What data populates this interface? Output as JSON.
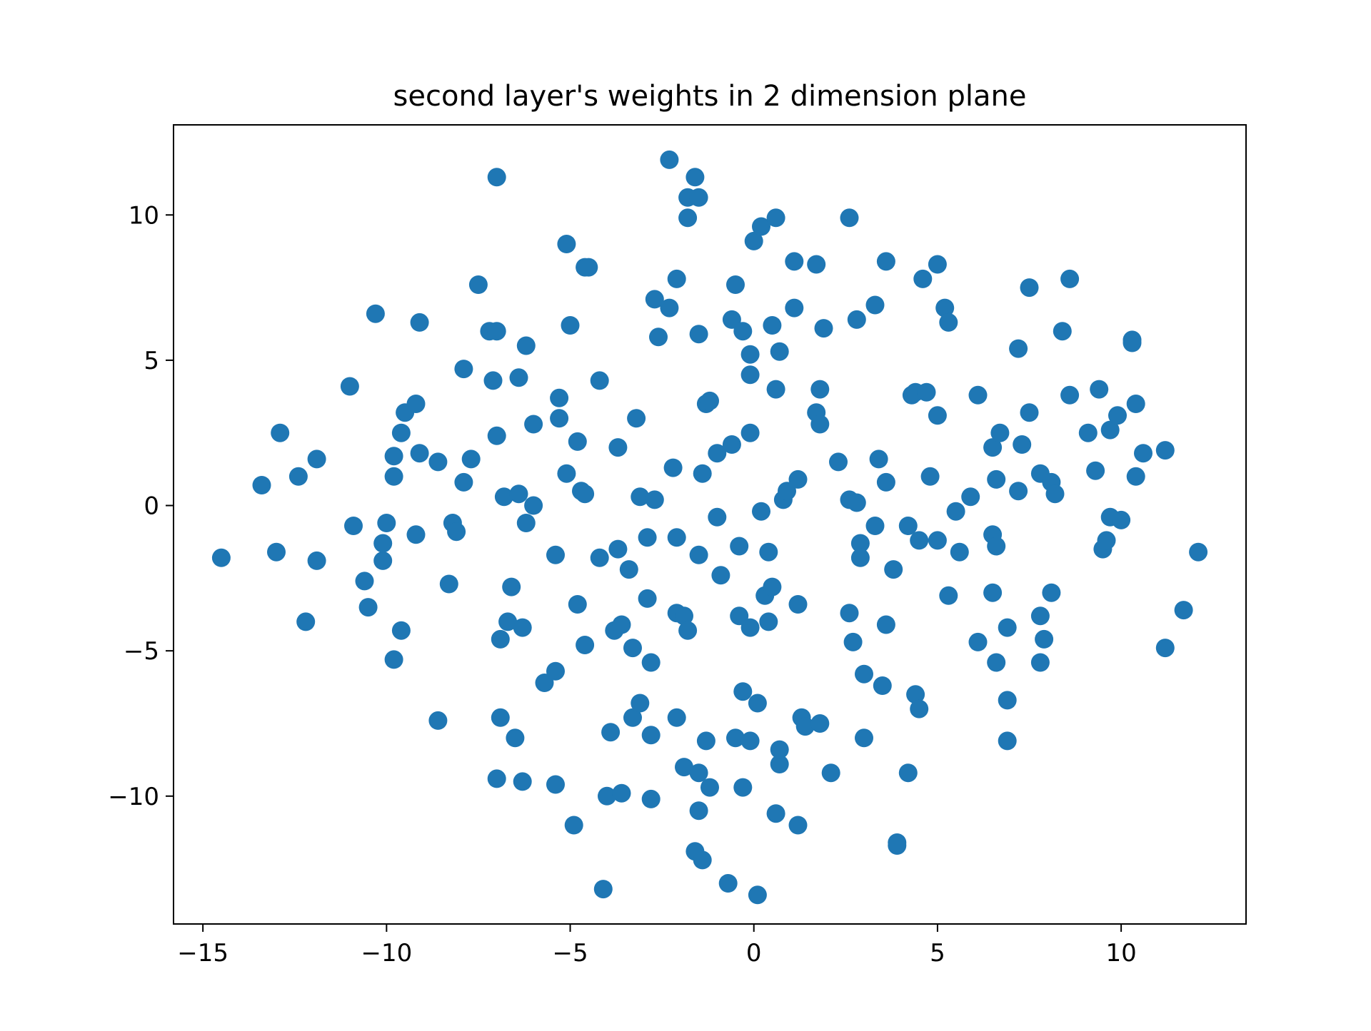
{
  "chart_data": {
    "type": "scatter",
    "title": "second layer's weights in 2 dimension plane",
    "xlabel": "",
    "ylabel": "",
    "xlim": [
      -15.8,
      13.4
    ],
    "ylim": [
      -14.4,
      13.1
    ],
    "xticks": [
      -15,
      -10,
      -5,
      0,
      5,
      10
    ],
    "xtick_labels": [
      "−15",
      "−10",
      "−5",
      "0",
      "5",
      "10"
    ],
    "yticks": [
      -10,
      -5,
      0,
      5,
      10
    ],
    "ytick_labels": [
      "−10",
      "−5",
      "0",
      "5",
      "10"
    ],
    "grid": false,
    "legend": "none",
    "marker_color": "#1f77b4",
    "points": [
      [
        -14.5,
        -1.8
      ],
      [
        -13.4,
        0.7
      ],
      [
        -12.9,
        2.5
      ],
      [
        -13.0,
        -1.6
      ],
      [
        -12.4,
        1.0
      ],
      [
        -12.2,
        -4.0
      ],
      [
        -11.9,
        1.6
      ],
      [
        -11.9,
        -1.9
      ],
      [
        -11.0,
        4.1
      ],
      [
        -10.9,
        -0.7
      ],
      [
        -10.6,
        -2.6
      ],
      [
        -10.5,
        -3.5
      ],
      [
        -10.3,
        6.6
      ],
      [
        -10.1,
        -1.9
      ],
      [
        -10.1,
        -1.3
      ],
      [
        -10.0,
        -0.6
      ],
      [
        -9.8,
        1.0
      ],
      [
        -9.8,
        1.7
      ],
      [
        -9.8,
        -5.3
      ],
      [
        -9.6,
        -4.3
      ],
      [
        -9.6,
        2.5
      ],
      [
        -9.5,
        3.2
      ],
      [
        -9.2,
        3.5
      ],
      [
        -9.2,
        -1.0
      ],
      [
        -9.1,
        1.8
      ],
      [
        -9.1,
        6.3
      ],
      [
        -8.6,
        1.5
      ],
      [
        -8.6,
        -7.4
      ],
      [
        -8.3,
        -2.7
      ],
      [
        -8.2,
        -0.6
      ],
      [
        -8.1,
        -0.9
      ],
      [
        -7.9,
        0.8
      ],
      [
        -7.9,
        4.7
      ],
      [
        -7.7,
        1.6
      ],
      [
        -7.5,
        7.6
      ],
      [
        -7.2,
        6.0
      ],
      [
        -7.1,
        4.3
      ],
      [
        -7.0,
        6.0
      ],
      [
        -7.0,
        2.4
      ],
      [
        -7.0,
        11.3
      ],
      [
        -7.0,
        -9.4
      ],
      [
        -6.9,
        -4.6
      ],
      [
        -6.9,
        -7.3
      ],
      [
        -6.8,
        0.3
      ],
      [
        -6.7,
        -4.0
      ],
      [
        -6.6,
        -2.8
      ],
      [
        -6.5,
        -8.0
      ],
      [
        -6.4,
        0.4
      ],
      [
        -6.4,
        4.4
      ],
      [
        -6.3,
        -4.2
      ],
      [
        -6.3,
        -9.5
      ],
      [
        -6.2,
        -0.6
      ],
      [
        -6.2,
        5.5
      ],
      [
        -6.0,
        2.8
      ],
      [
        -6.0,
        0.0
      ],
      [
        -5.7,
        -6.1
      ],
      [
        -5.4,
        -5.7
      ],
      [
        -5.4,
        -1.7
      ],
      [
        -5.4,
        -9.6
      ],
      [
        -5.3,
        3.0
      ],
      [
        -5.3,
        3.7
      ],
      [
        -5.1,
        9.0
      ],
      [
        -5.1,
        1.1
      ],
      [
        -5.0,
        6.2
      ],
      [
        -4.9,
        -11.0
      ],
      [
        -4.8,
        2.2
      ],
      [
        -4.8,
        -3.4
      ],
      [
        -4.7,
        0.5
      ],
      [
        -4.6,
        -4.8
      ],
      [
        -4.6,
        0.4
      ],
      [
        -4.6,
        8.2
      ],
      [
        -4.5,
        8.2
      ],
      [
        -4.2,
        4.3
      ],
      [
        -4.2,
        -1.8
      ],
      [
        -4.1,
        -13.2
      ],
      [
        -4.0,
        -10.0
      ],
      [
        -3.9,
        -7.8
      ],
      [
        -3.8,
        -4.3
      ],
      [
        -3.7,
        -1.5
      ],
      [
        -3.7,
        2.0
      ],
      [
        -3.6,
        -4.1
      ],
      [
        -3.6,
        -9.9
      ],
      [
        -3.4,
        -2.2
      ],
      [
        -3.3,
        -7.3
      ],
      [
        -3.3,
        -4.9
      ],
      [
        -3.2,
        3.0
      ],
      [
        -3.1,
        -6.8
      ],
      [
        -3.1,
        0.3
      ],
      [
        -2.9,
        -1.1
      ],
      [
        -2.9,
        -3.2
      ],
      [
        -2.8,
        -5.4
      ],
      [
        -2.8,
        -7.9
      ],
      [
        -2.8,
        -10.1
      ],
      [
        -2.7,
        0.2
      ],
      [
        -2.7,
        7.1
      ],
      [
        -2.6,
        5.8
      ],
      [
        -2.3,
        11.9
      ],
      [
        -2.3,
        6.8
      ],
      [
        -2.2,
        1.3
      ],
      [
        -2.1,
        7.8
      ],
      [
        -2.1,
        -1.1
      ],
      [
        -2.1,
        -7.3
      ],
      [
        -2.1,
        -3.7
      ],
      [
        -1.9,
        -3.8
      ],
      [
        -1.9,
        -9.0
      ],
      [
        -1.8,
        10.6
      ],
      [
        -1.8,
        9.9
      ],
      [
        -1.8,
        -4.3
      ],
      [
        -1.6,
        -11.9
      ],
      [
        -1.6,
        11.3
      ],
      [
        -1.5,
        -9.2
      ],
      [
        -1.5,
        -10.5
      ],
      [
        -1.5,
        5.9
      ],
      [
        -1.5,
        -1.7
      ],
      [
        -1.5,
        10.6
      ],
      [
        -1.4,
        1.1
      ],
      [
        -1.4,
        -12.2
      ],
      [
        -1.3,
        3.5
      ],
      [
        -1.3,
        -8.1
      ],
      [
        -1.2,
        3.6
      ],
      [
        -1.2,
        -9.7
      ],
      [
        -1.0,
        1.8
      ],
      [
        -1.0,
        -0.4
      ],
      [
        -0.9,
        -2.4
      ],
      [
        -0.7,
        -13.0
      ],
      [
        -0.6,
        2.1
      ],
      [
        -0.6,
        6.4
      ],
      [
        -0.5,
        7.6
      ],
      [
        -0.5,
        -8.0
      ],
      [
        -0.4,
        -1.4
      ],
      [
        -0.4,
        -3.8
      ],
      [
        -0.3,
        6.0
      ],
      [
        -0.3,
        -6.4
      ],
      [
        -0.3,
        -9.7
      ],
      [
        -0.1,
        -8.1
      ],
      [
        -0.1,
        5.2
      ],
      [
        -0.1,
        2.5
      ],
      [
        -0.1,
        4.5
      ],
      [
        -0.1,
        -4.2
      ],
      [
        0.0,
        9.1
      ],
      [
        0.1,
        -13.4
      ],
      [
        0.1,
        -6.8
      ],
      [
        0.2,
        9.6
      ],
      [
        0.2,
        -0.2
      ],
      [
        0.3,
        -3.1
      ],
      [
        0.4,
        -1.6
      ],
      [
        0.4,
        -4.0
      ],
      [
        0.5,
        6.2
      ],
      [
        0.5,
        -2.8
      ],
      [
        0.6,
        9.9
      ],
      [
        0.6,
        4.0
      ],
      [
        0.6,
        -10.6
      ],
      [
        0.7,
        -8.9
      ],
      [
        0.7,
        -8.4
      ],
      [
        0.7,
        5.3
      ],
      [
        0.8,
        0.2
      ],
      [
        0.9,
        0.5
      ],
      [
        1.1,
        8.4
      ],
      [
        1.1,
        6.8
      ],
      [
        1.2,
        0.9
      ],
      [
        1.2,
        -11.0
      ],
      [
        1.2,
        -3.4
      ],
      [
        1.3,
        -7.3
      ],
      [
        1.4,
        -7.6
      ],
      [
        1.7,
        8.3
      ],
      [
        1.7,
        3.2
      ],
      [
        1.8,
        4.0
      ],
      [
        1.8,
        -7.5
      ],
      [
        1.8,
        2.8
      ],
      [
        1.9,
        6.1
      ],
      [
        2.1,
        -9.2
      ],
      [
        2.3,
        1.5
      ],
      [
        2.6,
        9.9
      ],
      [
        2.6,
        0.2
      ],
      [
        2.6,
        -3.7
      ],
      [
        2.7,
        -4.7
      ],
      [
        2.8,
        6.4
      ],
      [
        2.8,
        0.1
      ],
      [
        2.9,
        -1.3
      ],
      [
        2.9,
        -1.8
      ],
      [
        3.0,
        -5.8
      ],
      [
        3.0,
        -8.0
      ],
      [
        3.3,
        6.9
      ],
      [
        3.3,
        -0.7
      ],
      [
        3.4,
        1.6
      ],
      [
        3.5,
        -6.2
      ],
      [
        3.6,
        8.4
      ],
      [
        3.6,
        0.8
      ],
      [
        3.6,
        -4.1
      ],
      [
        3.8,
        -2.2
      ],
      [
        3.9,
        -11.6
      ],
      [
        3.9,
        -11.7
      ],
      [
        4.2,
        -0.7
      ],
      [
        4.2,
        -9.2
      ],
      [
        4.3,
        3.8
      ],
      [
        4.4,
        3.9
      ],
      [
        4.4,
        -6.5
      ],
      [
        4.5,
        -1.2
      ],
      [
        4.5,
        -7.0
      ],
      [
        4.6,
        7.8
      ],
      [
        4.7,
        3.9
      ],
      [
        4.8,
        1.0
      ],
      [
        5.0,
        8.3
      ],
      [
        5.0,
        -1.2
      ],
      [
        5.0,
        3.1
      ],
      [
        5.2,
        6.8
      ],
      [
        5.3,
        6.3
      ],
      [
        5.3,
        -3.1
      ],
      [
        5.5,
        -0.2
      ],
      [
        5.6,
        -1.6
      ],
      [
        5.9,
        0.3
      ],
      [
        6.1,
        3.8
      ],
      [
        6.1,
        -4.7
      ],
      [
        6.5,
        2.0
      ],
      [
        6.6,
        0.9
      ],
      [
        6.5,
        -1.0
      ],
      [
        6.6,
        -1.4
      ],
      [
        6.5,
        -3.0
      ],
      [
        6.6,
        -5.4
      ],
      [
        6.7,
        2.5
      ],
      [
        6.9,
        -6.7
      ],
      [
        6.9,
        -8.1
      ],
      [
        6.9,
        -4.2
      ],
      [
        7.2,
        5.4
      ],
      [
        7.2,
        0.5
      ],
      [
        7.3,
        2.1
      ],
      [
        7.5,
        3.2
      ],
      [
        7.5,
        7.5
      ],
      [
        7.8,
        1.1
      ],
      [
        7.8,
        -3.8
      ],
      [
        7.8,
        -5.4
      ],
      [
        7.9,
        -4.6
      ],
      [
        8.1,
        0.8
      ],
      [
        8.1,
        -3.0
      ],
      [
        8.2,
        0.4
      ],
      [
        8.4,
        6.0
      ],
      [
        8.6,
        7.8
      ],
      [
        8.6,
        3.8
      ],
      [
        9.1,
        2.5
      ],
      [
        9.3,
        1.2
      ],
      [
        9.4,
        4.0
      ],
      [
        9.5,
        -1.5
      ],
      [
        9.6,
        -1.2
      ],
      [
        9.7,
        2.6
      ],
      [
        9.7,
        -0.4
      ],
      [
        9.9,
        3.1
      ],
      [
        10.0,
        -0.5
      ],
      [
        10.3,
        5.7
      ],
      [
        10.3,
        5.6
      ],
      [
        10.4,
        1.0
      ],
      [
        10.4,
        3.5
      ],
      [
        10.6,
        1.8
      ],
      [
        11.2,
        -4.9
      ],
      [
        11.2,
        1.9
      ],
      [
        11.7,
        -3.6
      ],
      [
        12.1,
        -1.6
      ]
    ]
  }
}
